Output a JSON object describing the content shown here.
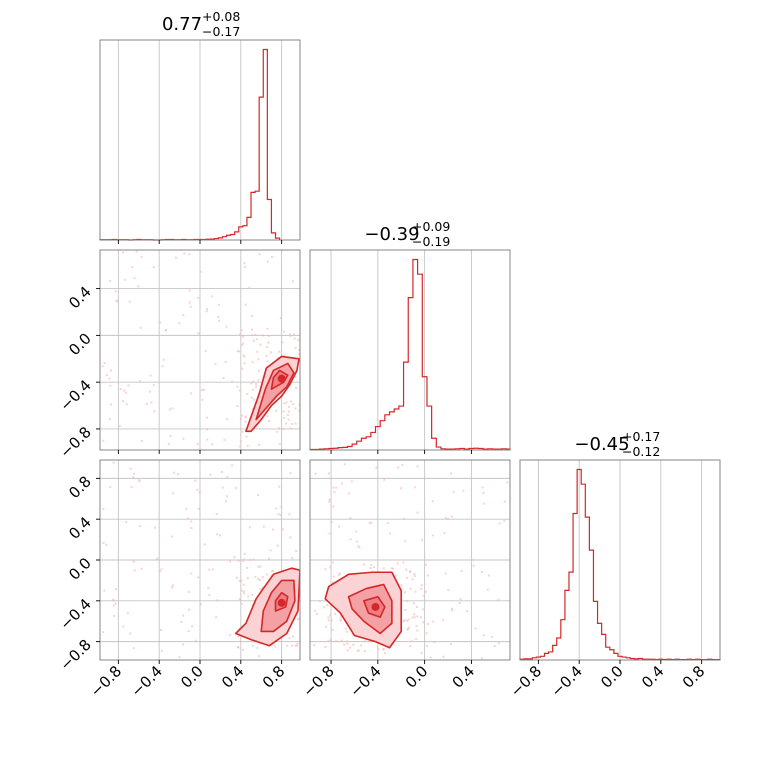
{
  "chart_data": {
    "type": "corner",
    "parameters": 3,
    "color": "#d62728",
    "grid": true,
    "titles": [
      {
        "value": "0.77",
        "plus": "+0.08",
        "minus": "−0.17"
      },
      {
        "value": "−0.39",
        "plus": "+0.09",
        "minus": "−0.19"
      },
      {
        "value": "−0.45",
        "plus": "+0.17",
        "minus": "−0.12"
      }
    ],
    "ranges": [
      [
        -0.98,
        0.98
      ],
      [
        -0.98,
        0.73
      ],
      [
        -0.98,
        0.98
      ]
    ],
    "ticks": {
      "param0": [
        "−0.8",
        "−0.4",
        "0.0",
        "0.4",
        "0.8"
      ],
      "param1_y": [
        "−0.8",
        "−0.4",
        "0.0",
        "0.4"
      ],
      "param1_x": [
        "−0.8",
        "−0.4",
        "0.0",
        "0.4"
      ],
      "param2": [
        "−0.8",
        "−0.4",
        "0.0",
        "0.4",
        "0.8"
      ]
    },
    "histograms": [
      {
        "param": 0,
        "bin_start": -0.98,
        "bin_width": 0.04,
        "counts": [
          1,
          1,
          1,
          2,
          1,
          1,
          1,
          0,
          1,
          2,
          1,
          1,
          1,
          0,
          0,
          1,
          2,
          2,
          1,
          1,
          2,
          1,
          1,
          2,
          2,
          2,
          3,
          4,
          6,
          9,
          14,
          20,
          23,
          34,
          55,
          60,
          95,
          200,
          205,
          600,
          800,
          170,
          30,
          8
        ]
      },
      {
        "param": 1,
        "bin_start": -0.98,
        "bin_width": 0.04,
        "counts": [
          2,
          2,
          3,
          4,
          5,
          6,
          8,
          9,
          12,
          20,
          30,
          40,
          45,
          60,
          80,
          100,
          120,
          130,
          140,
          150,
          300,
          520,
          650,
          600,
          250,
          150,
          40,
          10,
          4,
          3,
          3,
          4,
          5,
          3,
          5,
          6,
          5,
          3,
          4,
          3,
          3,
          4,
          3
        ]
      },
      {
        "param": 2,
        "bin_start": -0.98,
        "bin_width": 0.04,
        "counts": [
          2,
          3,
          3,
          6,
          8,
          10,
          18,
          22,
          40,
          60,
          110,
          190,
          240,
          400,
          520,
          480,
          390,
          300,
          160,
          100,
          70,
          35,
          28,
          18,
          10,
          8,
          6,
          4,
          3,
          4,
          2,
          2,
          2,
          1,
          2,
          1,
          2,
          1,
          2,
          1,
          1,
          2,
          1,
          2,
          1,
          1,
          2,
          1,
          1
        ]
      }
    ],
    "density_2d": [
      {
        "x_param": 0,
        "y_param": 1,
        "peak": [
          0.8,
          -0.37
        ],
        "contours": [
          [
            [
              0.5,
              -0.82
            ],
            [
              0.6,
              -0.72
            ],
            [
              0.7,
              -0.6
            ],
            [
              0.8,
              -0.52
            ],
            [
              0.88,
              -0.42
            ],
            [
              0.95,
              -0.3
            ],
            [
              0.97,
              -0.2
            ],
            [
              0.8,
              -0.18
            ],
            [
              0.65,
              -0.28
            ],
            [
              0.58,
              -0.5
            ],
            [
              0.45,
              -0.82
            ]
          ],
          [
            [
              0.55,
              -0.72
            ],
            [
              0.65,
              -0.62
            ],
            [
              0.75,
              -0.52
            ],
            [
              0.85,
              -0.44
            ],
            [
              0.92,
              -0.32
            ],
            [
              0.86,
              -0.24
            ],
            [
              0.72,
              -0.3
            ],
            [
              0.64,
              -0.46
            ]
          ],
          [
            [
              0.7,
              -0.46
            ],
            [
              0.82,
              -0.4
            ],
            [
              0.86,
              -0.34
            ],
            [
              0.78,
              -0.3
            ],
            [
              0.72,
              -0.36
            ]
          ]
        ]
      },
      {
        "x_param": 0,
        "y_param": 2,
        "peak": [
          0.8,
          -0.42
        ],
        "contours": [
          [
            [
              0.35,
              -0.72
            ],
            [
              0.5,
              -0.78
            ],
            [
              0.68,
              -0.84
            ],
            [
              0.85,
              -0.72
            ],
            [
              0.96,
              -0.5
            ],
            [
              0.98,
              -0.1
            ],
            [
              0.9,
              -0.08
            ],
            [
              0.72,
              -0.14
            ],
            [
              0.62,
              -0.28
            ],
            [
              0.55,
              -0.38
            ],
            [
              0.45,
              -0.62
            ]
          ],
          [
            [
              0.6,
              -0.7
            ],
            [
              0.72,
              -0.7
            ],
            [
              0.85,
              -0.6
            ],
            [
              0.93,
              -0.4
            ],
            [
              0.92,
              -0.2
            ],
            [
              0.8,
              -0.2
            ],
            [
              0.7,
              -0.32
            ],
            [
              0.62,
              -0.5
            ]
          ],
          [
            [
              0.74,
              -0.5
            ],
            [
              0.84,
              -0.46
            ],
            [
              0.86,
              -0.36
            ],
            [
              0.8,
              -0.32
            ],
            [
              0.74,
              -0.4
            ]
          ]
        ]
      },
      {
        "x_param": 1,
        "y_param": 2,
        "peak": [
          -0.42,
          -0.46
        ],
        "contours": [
          [
            [
              -0.82,
              -0.26
            ],
            [
              -0.65,
              -0.14
            ],
            [
              -0.45,
              -0.12
            ],
            [
              -0.28,
              -0.12
            ],
            [
              -0.2,
              -0.3
            ],
            [
              -0.2,
              -0.7
            ],
            [
              -0.3,
              -0.86
            ],
            [
              -0.42,
              -0.8
            ],
            [
              -0.6,
              -0.74
            ],
            [
              -0.72,
              -0.52
            ],
            [
              -0.85,
              -0.38
            ]
          ],
          [
            [
              -0.65,
              -0.36
            ],
            [
              -0.5,
              -0.28
            ],
            [
              -0.35,
              -0.24
            ],
            [
              -0.28,
              -0.4
            ],
            [
              -0.28,
              -0.62
            ],
            [
              -0.38,
              -0.72
            ],
            [
              -0.52,
              -0.6
            ],
            [
              -0.62,
              -0.48
            ]
          ],
          [
            [
              -0.52,
              -0.4
            ],
            [
              -0.4,
              -0.36
            ],
            [
              -0.34,
              -0.46
            ],
            [
              -0.38,
              -0.56
            ],
            [
              -0.48,
              -0.52
            ]
          ]
        ]
      }
    ]
  }
}
